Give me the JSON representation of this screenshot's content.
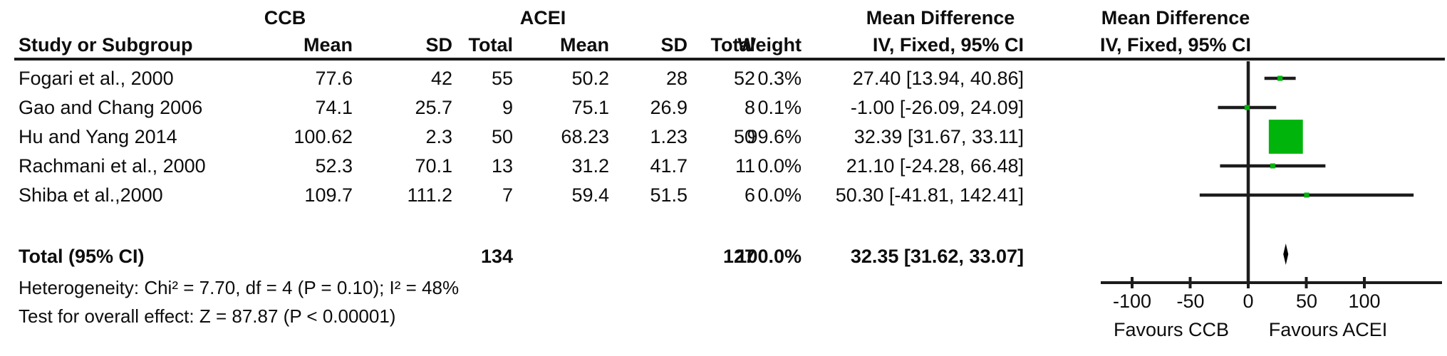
{
  "header": {
    "group_ccb": "CCB",
    "group_acei": "ACEI",
    "md_col_title": "Mean Difference",
    "md_plot_title": "Mean Difference",
    "col_study": "Study or Subgroup",
    "col_mean_ccb": "Mean",
    "col_sd_ccb": "SD",
    "col_total_ccb": "Total",
    "col_mean_acei": "Mean",
    "col_sd_acei": "SD",
    "col_total_acei": "Total",
    "col_weight": "Weight",
    "col_ci": "IV, Fixed, 95% CI",
    "plot_ci": "IV, Fixed, 95% CI"
  },
  "chart_data": {
    "type": "forest",
    "effect_measure": "Mean Difference, IV, Fixed, 95% CI",
    "groups": [
      "CCB",
      "ACEI"
    ],
    "studies": [
      {
        "name": "Fogari et al., 2000",
        "ccb_mean": "77.6",
        "ccb_sd": "42",
        "ccb_total": "55",
        "acei_mean": "50.2",
        "acei_sd": "28",
        "acei_total": "52",
        "weight": "0.3%",
        "md": 27.4,
        "ci_low": 13.94,
        "ci_high": 40.86,
        "ci_text": "27.40 [13.94, 40.86]"
      },
      {
        "name": "Gao and Chang 2006",
        "ccb_mean": "74.1",
        "ccb_sd": "25.7",
        "ccb_total": "9",
        "acei_mean": "75.1",
        "acei_sd": "26.9",
        "acei_total": "8",
        "weight": "0.1%",
        "md": -1.0,
        "ci_low": -26.09,
        "ci_high": 24.09,
        "ci_text": "-1.00 [-26.09, 24.09]"
      },
      {
        "name": "Hu and Yang 2014",
        "ccb_mean": "100.62",
        "ccb_sd": "2.3",
        "ccb_total": "50",
        "acei_mean": "68.23",
        "acei_sd": "1.23",
        "acei_total": "50",
        "weight": "99.6%",
        "md": 32.39,
        "ci_low": 31.67,
        "ci_high": 33.11,
        "ci_text": "32.39 [31.67, 33.11]"
      },
      {
        "name": "Rachmani et al., 2000",
        "ccb_mean": "52.3",
        "ccb_sd": "70.1",
        "ccb_total": "13",
        "acei_mean": "31.2",
        "acei_sd": "41.7",
        "acei_total": "11",
        "weight": "0.0%",
        "md": 21.1,
        "ci_low": -24.28,
        "ci_high": 66.48,
        "ci_text": "21.10 [-24.28, 66.48]"
      },
      {
        "name": "Shiba et al.,2000",
        "ccb_mean": "109.7",
        "ccb_sd": "111.2",
        "ccb_total": "7",
        "acei_mean": "59.4",
        "acei_sd": "51.5",
        "acei_total": "6",
        "weight": "0.0%",
        "md": 50.3,
        "ci_low": -41.81,
        "ci_high": 142.41,
        "ci_text": "50.30 [-41.81, 142.41]"
      }
    ],
    "total": {
      "label": "Total (95% CI)",
      "ccb_total": "134",
      "acei_total": "127",
      "weight": "100.0%",
      "md": 32.35,
      "ci_low": 31.62,
      "ci_high": 33.07,
      "ci_text": "32.35 [31.62, 33.07]"
    },
    "heterogeneity": "Heterogeneity: Chi² = 7.70, df = 4 (P = 0.10); I² = 48%",
    "overall_effect": "Test for overall effect: Z = 87.87 (P < 0.00001)",
    "axis": {
      "ticks": [
        -100,
        -50,
        0,
        50,
        100
      ],
      "tick_labels": [
        "-100",
        "-50",
        "0",
        "50",
        "100"
      ],
      "xlim": [
        -127,
        167
      ],
      "left_label": "Favours CCB",
      "right_label": "Favours ACEI"
    },
    "marker_color": "#00b40c",
    "line_color": "#1c1c1c",
    "diamond_color": "#000000"
  }
}
